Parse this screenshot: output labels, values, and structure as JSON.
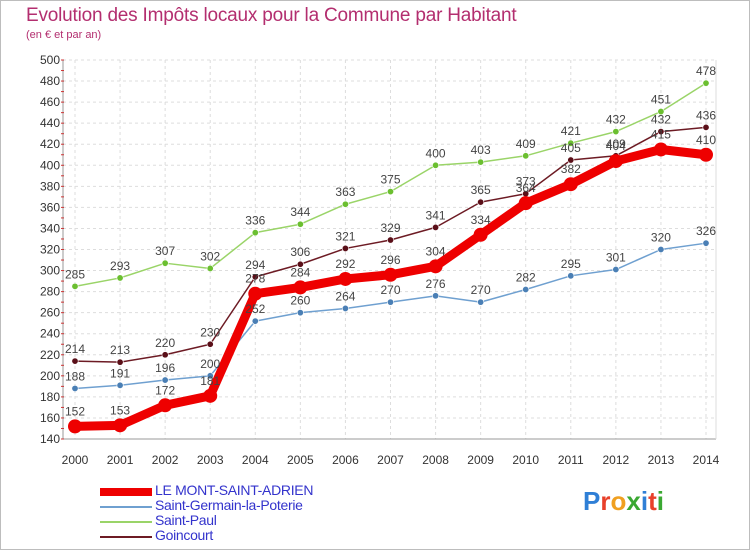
{
  "chart_data": {
    "type": "line",
    "title": "Evolution des Impôts locaux pour la Commune par Habitant",
    "subtitle": "(en € et par an)",
    "xlabel": "",
    "ylabel": "",
    "categories": [
      "2000",
      "2001",
      "2002",
      "2003",
      "2004",
      "2005",
      "2006",
      "2007",
      "2008",
      "2009",
      "2010",
      "2011",
      "2012",
      "2013",
      "2014"
    ],
    "ylim": [
      140,
      500
    ],
    "yticks": [
      140,
      160,
      180,
      200,
      220,
      240,
      260,
      280,
      300,
      320,
      340,
      360,
      380,
      400,
      420,
      440,
      460,
      480,
      500
    ],
    "grid": true,
    "legend_position": "bottom-left",
    "series": [
      {
        "name": "Saint-Germain-la-Poterie",
        "color": "#6fa0d0",
        "values": [
          188,
          191,
          196,
          200,
          252,
          260,
          264,
          270,
          276,
          270,
          282,
          295,
          301,
          320,
          326
        ]
      },
      {
        "name": "Saint-Paul",
        "color": "#9ad468",
        "values": [
          285,
          293,
          307,
          302,
          336,
          344,
          363,
          375,
          400,
          403,
          409,
          421,
          432,
          451,
          478
        ]
      },
      {
        "name": "Goincourt",
        "color": "#6d1b24",
        "values": [
          214,
          213,
          220,
          230,
          294,
          306,
          321,
          329,
          341,
          365,
          373,
          405,
          409,
          432,
          436
        ]
      },
      {
        "name": "LE MONT-SAINT-ADRIEN",
        "color": "#ee0000",
        "values": [
          152,
          153,
          172,
          181,
          278,
          284,
          292,
          296,
          304,
          334,
          364,
          382,
          404,
          415,
          410
        ]
      }
    ]
  },
  "legend": {
    "items": [
      {
        "label": "LE MONT-SAINT-ADRIEN",
        "color": "#ee0000"
      },
      {
        "label": "Saint-Germain-la-Poterie",
        "color": "#6fa0d0"
      },
      {
        "label": "Saint-Paul",
        "color": "#9ad468"
      },
      {
        "label": "Goincourt",
        "color": "#6d1b24"
      }
    ]
  },
  "logo": {
    "letters": [
      "P",
      "r",
      "o",
      "x",
      "i",
      "t",
      "i"
    ],
    "colors": [
      "#2f7fd6",
      "#e8402a",
      "#f0a020",
      "#3aa832",
      "#2f7fd6",
      "#e8402a",
      "#3aa832"
    ]
  }
}
